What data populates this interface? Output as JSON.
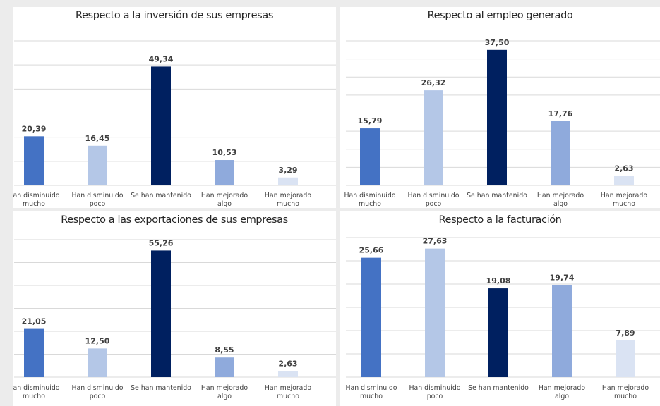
{
  "chart_data": [
    {
      "type": "bar",
      "title": "Respecto a la inversión de sus empresas",
      "categories": [
        [
          "Han disminuido",
          "mucho"
        ],
        [
          "Han disminuido",
          "poco"
        ],
        [
          "Se han mantenido"
        ],
        [
          "Han mejorado",
          "algo"
        ],
        [
          "Han mejorado",
          "mucho"
        ]
      ],
      "values": [
        20.39,
        16.45,
        49.34,
        10.53,
        3.29
      ],
      "value_labels": [
        "20,39",
        "16,45",
        "49,34",
        "10,53",
        "3,29"
      ],
      "ylim": [
        0,
        60
      ],
      "grid": true,
      "bar_colors": [
        "#4472c4",
        "#b4c7e7",
        "#002060",
        "#8faadc",
        "#dae3f3"
      ]
    },
    {
      "type": "bar",
      "title": "Respecto al empleo generado",
      "categories": [
        [
          "Han disminuido",
          "mucho"
        ],
        [
          "Han disminuido",
          "poco"
        ],
        [
          "Se han mantenido"
        ],
        [
          "Han mejorado",
          "algo"
        ],
        [
          "Han mejorado",
          "mucho"
        ]
      ],
      "values": [
        15.79,
        26.32,
        37.5,
        17.76,
        2.63
      ],
      "value_labels": [
        "15,79",
        "26,32",
        "37,50",
        "17,76",
        "2,63"
      ],
      "ylim": [
        0,
        40
      ],
      "grid": true,
      "bar_colors": [
        "#4472c4",
        "#b4c7e7",
        "#002060",
        "#8faadc",
        "#dae3f3"
      ]
    },
    {
      "type": "bar",
      "title": "Respecto a las exportaciones de sus empresas",
      "categories": [
        [
          "Han disminuido",
          "mucho"
        ],
        [
          "Han disminuido",
          "poco"
        ],
        [
          "Se han mantenido"
        ],
        [
          "Han mejorado",
          "algo"
        ],
        [
          "Han mejorado",
          "mucho"
        ]
      ],
      "values": [
        21.05,
        12.5,
        55.26,
        8.55,
        2.63
      ],
      "value_labels": [
        "21,05",
        "12,50",
        "55,26",
        "8,55",
        "2,63"
      ],
      "ylim": [
        0,
        60
      ],
      "grid": true,
      "bar_colors": [
        "#4472c4",
        "#b4c7e7",
        "#002060",
        "#8faadc",
        "#dae3f3"
      ]
    },
    {
      "type": "bar",
      "title": "Respecto a la facturación",
      "categories": [
        [
          "Han disminuido",
          "mucho"
        ],
        [
          "Han disminuido",
          "poco"
        ],
        [
          "Se han mantenido"
        ],
        [
          "Han mejorado",
          "algo"
        ],
        [
          "Han mejorado",
          "mucho"
        ]
      ],
      "values": [
        25.66,
        27.63,
        19.08,
        19.74,
        7.89
      ],
      "value_labels": [
        "25,66",
        "27,63",
        "19,08",
        "19,74",
        "7,89"
      ],
      "ylim": [
        0,
        30
      ],
      "grid": true,
      "bar_colors": [
        "#4472c4",
        "#b4c7e7",
        "#002060",
        "#8faadc",
        "#dae3f3"
      ]
    }
  ]
}
